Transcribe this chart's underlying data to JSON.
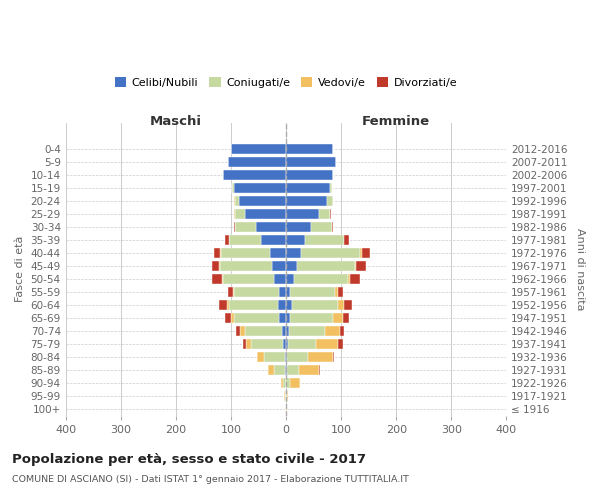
{
  "age_groups": [
    "100+",
    "95-99",
    "90-94",
    "85-89",
    "80-84",
    "75-79",
    "70-74",
    "65-69",
    "60-64",
    "55-59",
    "50-54",
    "45-49",
    "40-44",
    "35-39",
    "30-34",
    "25-29",
    "20-24",
    "15-19",
    "10-14",
    "5-9",
    "0-4"
  ],
  "birth_years": [
    "≤ 1916",
    "1917-1921",
    "1922-1926",
    "1927-1931",
    "1932-1936",
    "1937-1941",
    "1942-1946",
    "1947-1951",
    "1952-1956",
    "1957-1961",
    "1962-1966",
    "1967-1971",
    "1972-1976",
    "1977-1981",
    "1982-1986",
    "1987-1991",
    "1992-1996",
    "1997-2001",
    "2002-2006",
    "2007-2011",
    "2012-2016"
  ],
  "male_celibe": [
    0,
    0,
    0,
    2,
    2,
    5,
    7,
    12,
    15,
    12,
    22,
    25,
    30,
    45,
    55,
    75,
    85,
    95,
    115,
    105,
    100
  ],
  "male_coniugato": [
    1,
    2,
    5,
    20,
    38,
    58,
    68,
    82,
    88,
    82,
    92,
    95,
    88,
    58,
    38,
    18,
    8,
    3,
    0,
    0,
    0
  ],
  "male_vedovo": [
    0,
    1,
    5,
    10,
    12,
    10,
    8,
    6,
    4,
    2,
    2,
    1,
    1,
    0,
    0,
    1,
    1,
    0,
    0,
    0,
    0
  ],
  "male_divorziato": [
    0,
    0,
    0,
    0,
    0,
    6,
    7,
    10,
    15,
    10,
    18,
    14,
    12,
    8,
    2,
    1,
    1,
    0,
    0,
    0,
    0
  ],
  "female_celibe": [
    0,
    0,
    0,
    2,
    2,
    3,
    5,
    7,
    10,
    8,
    14,
    20,
    27,
    35,
    45,
    60,
    75,
    80,
    85,
    90,
    85
  ],
  "female_coniugato": [
    0,
    1,
    8,
    22,
    38,
    52,
    65,
    78,
    85,
    80,
    98,
    105,
    108,
    70,
    38,
    20,
    10,
    4,
    0,
    0,
    0
  ],
  "female_vedovo": [
    1,
    3,
    18,
    35,
    45,
    40,
    28,
    18,
    10,
    6,
    4,
    2,
    2,
    1,
    0,
    0,
    0,
    0,
    0,
    0,
    0
  ],
  "female_divorziato": [
    0,
    0,
    0,
    2,
    2,
    8,
    8,
    12,
    15,
    10,
    18,
    18,
    15,
    8,
    3,
    1,
    1,
    0,
    0,
    0,
    0
  ],
  "colors": {
    "celibe": "#4472C4",
    "coniugato": "#C5D9A0",
    "vedovo": "#F2C060",
    "divorziato": "#C0392B"
  },
  "title": "Popolazione per età, sesso e stato civile - 2017",
  "subtitle": "COMUNE DI ASCIANO (SI) - Dati ISTAT 1° gennaio 2017 - Elaborazione TUTTITALIA.IT",
  "ylabel_left": "Fasce di età",
  "ylabel_right": "Anni di nascita",
  "xlabel_left": "Maschi",
  "xlabel_right": "Femmine",
  "xlim": 400,
  "background_color": "#ffffff",
  "grid_color": "#cccccc",
  "legend_labels": [
    "Celibi/Nubili",
    "Coniugati/e",
    "Vedovi/e",
    "Divorziati/e"
  ]
}
